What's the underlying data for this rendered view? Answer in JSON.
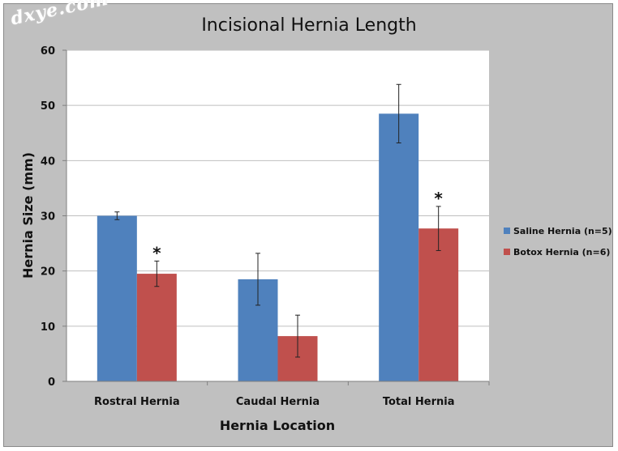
{
  "watermark": "dxye.com",
  "colors": {
    "saline": "#4f81bd",
    "botox": "#c0504d",
    "gridline": "#bfbfbf",
    "frame": "#c0c0c0",
    "plot_bg": "#ffffff"
  },
  "chart_data": {
    "type": "bar",
    "title": "Incisional Hernia Length",
    "xlabel": "Hernia Location",
    "ylabel": "Hernia Size (mm)",
    "ylim": [
      0,
      60
    ],
    "yticks": [
      0,
      10,
      20,
      30,
      40,
      50,
      60
    ],
    "grid": true,
    "legend_position": "right",
    "categories": [
      "Rostral Hernia",
      "Caudal Hernia",
      "Total Hernia"
    ],
    "series": [
      {
        "name": "Saline Hernia (n=5)",
        "values": [
          30.0,
          18.5,
          48.5
        ],
        "error": [
          0.7,
          4.7,
          5.3
        ],
        "significance": [
          "",
          "",
          ""
        ]
      },
      {
        "name": "Botox Hernia (n=6)",
        "values": [
          19.5,
          8.2,
          27.7
        ],
        "error": [
          2.3,
          3.8,
          4.0
        ],
        "significance": [
          "*",
          "",
          "*"
        ]
      }
    ]
  }
}
